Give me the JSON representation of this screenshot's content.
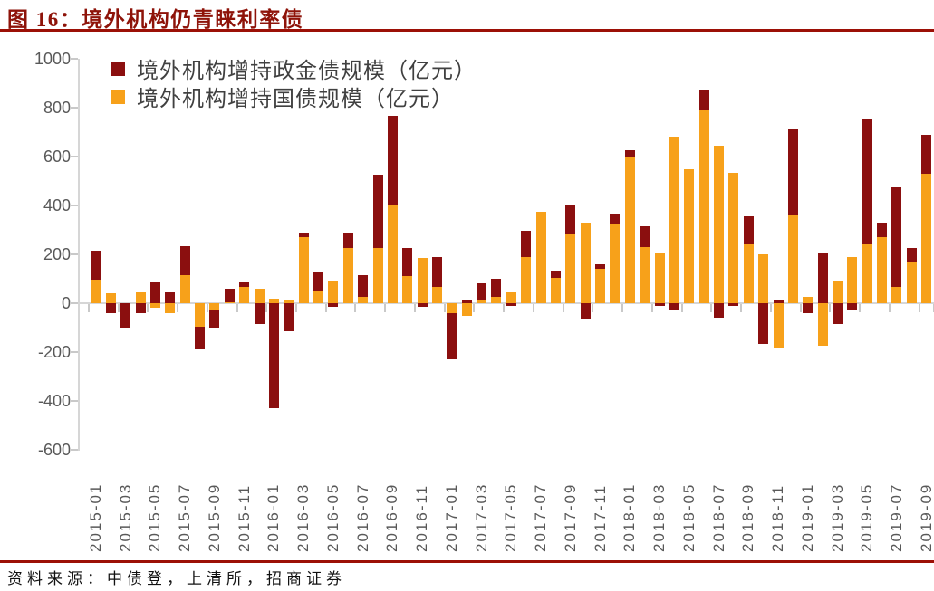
{
  "title": "图 16：境外机构仍青睐利率债",
  "source": "资料来源：中债登，上清所，招商证券",
  "colors": {
    "accent_red_rule": "#9c1006",
    "title_red": "#8e1309",
    "series_policy_red": "#8b0f0f",
    "series_treasury_orange": "#f7a11a",
    "axis_line_gray": "#d6d6d6",
    "tick_gray": "#c9c9c9",
    "axis_text_gray": "#595959",
    "legend_text_gray": "#404040"
  },
  "chart_data": {
    "type": "bar",
    "stacked": true,
    "grid": "zero-line-only",
    "legend_position": "top-left",
    "ylim": [
      -600,
      1000
    ],
    "y_ticks": [
      1000,
      800,
      600,
      400,
      200,
      0,
      -200,
      -400,
      -600
    ],
    "x_label_every": 2,
    "stack_order": [
      1,
      0
    ],
    "categories": [
      "2015-01",
      "2015-02",
      "2015-03",
      "2015-04",
      "2015-05",
      "2015-06",
      "2015-07",
      "2015-08",
      "2015-09",
      "2015-10",
      "2015-11",
      "2015-12",
      "2016-01",
      "2016-02",
      "2016-03",
      "2016-04",
      "2016-05",
      "2016-06",
      "2016-07",
      "2016-08",
      "2016-09",
      "2016-10",
      "2016-11",
      "2016-12",
      "2017-01",
      "2017-02",
      "2017-03",
      "2017-04",
      "2017-05",
      "2017-06",
      "2017-07",
      "2017-08",
      "2017-09",
      "2017-10",
      "2017-11",
      "2017-12",
      "2018-01",
      "2018-02",
      "2018-03",
      "2018-04",
      "2018-05",
      "2018-06",
      "2018-07",
      "2018-08",
      "2018-09",
      "2018-10",
      "2018-11",
      "2018-12",
      "2019-01",
      "2019-02",
      "2019-03",
      "2019-04",
      "2019-05",
      "2019-06",
      "2019-07",
      "2019-08",
      "2019-09"
    ],
    "series": [
      {
        "name": "境外机构增持政金债规模（亿元）",
        "color": "#8b0f0f",
        "values": [
          120,
          -40,
          -100,
          -40,
          85,
          45,
          120,
          -95,
          -70,
          55,
          20,
          -85,
          -430,
          -115,
          20,
          80,
          -15,
          65,
          90,
          300,
          360,
          115,
          -15,
          125,
          -190,
          10,
          65,
          75,
          -10,
          105,
          0,
          30,
          120,
          -65,
          20,
          40,
          25,
          85,
          -10,
          -30,
          0,
          85,
          -60,
          -10,
          115,
          -165,
          10,
          350,
          -40,
          205,
          -85,
          -25,
          515,
          60,
          410,
          55,
          160
        ]
      },
      {
        "name": "境外机构增持国债规模（亿元）",
        "color": "#f7a11a",
        "values": [
          95,
          40,
          0,
          45,
          -20,
          -40,
          115,
          -95,
          -30,
          5,
          65,
          60,
          20,
          15,
          270,
          50,
          90,
          225,
          25,
          225,
          405,
          110,
          185,
          65,
          -40,
          -50,
          15,
          25,
          45,
          190,
          375,
          105,
          280,
          330,
          140,
          325,
          600,
          230,
          205,
          680,
          550,
          790,
          645,
          535,
          240,
          200,
          -185,
          360,
          25,
          -175,
          90,
          190,
          240,
          270,
          65,
          170,
          530
        ]
      }
    ]
  }
}
